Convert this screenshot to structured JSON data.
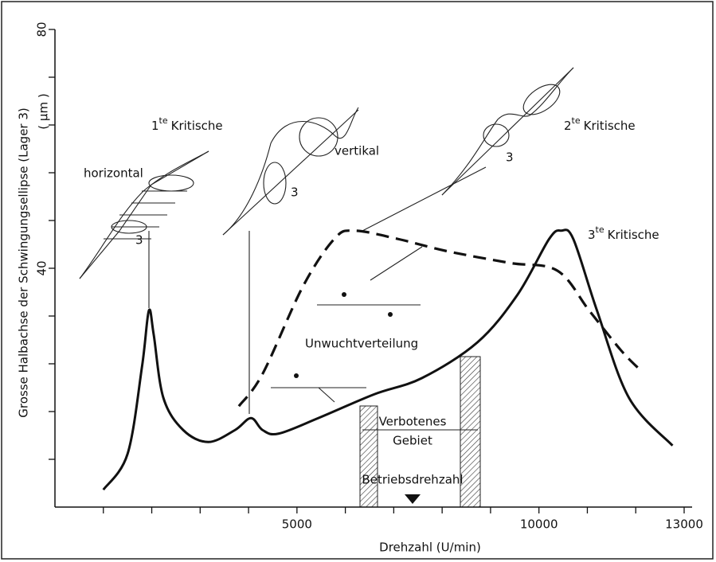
{
  "chart_data": {
    "type": "line",
    "ylabel": "Grosse Halbachse der Schwingungsellipse (Lager 3)",
    "yunit": "( μm )",
    "xlabel": "Drehzahl  (U/min)",
    "xlim": [
      0,
      13000
    ],
    "ylim": [
      0,
      80
    ],
    "xticks": [
      5000,
      10000,
      13000
    ],
    "xminorticks": [
      1000,
      2000,
      3000,
      4000,
      6000,
      7000,
      8000,
      9000,
      11000,
      12000
    ],
    "yticks": [
      40,
      80
    ],
    "yminorticks": [
      8,
      16,
      24,
      32,
      48,
      56,
      64,
      72
    ],
    "series": [
      {
        "color": "#111111",
        "dash": false,
        "x": [
          1000,
          1500,
          1800,
          1940,
          2040,
          2240,
          2650,
          3170,
          3720,
          4050,
          4290,
          4620,
          5440,
          6600,
          7580,
          8730,
          9560,
          10210,
          10460,
          10710,
          11200,
          11860,
          12760
        ],
        "values": [
          2.9,
          8.9,
          23.6,
          32.9,
          28.9,
          18.3,
          12.9,
          10.9,
          12.9,
          14.9,
          12.9,
          12.3,
          14.9,
          18.9,
          21.6,
          27.6,
          35.6,
          44.9,
          46.3,
          44.9,
          32.9,
          18.3,
          10.3
        ]
      },
      {
        "color": "#111111",
        "dash": true,
        "x": [
          3800,
          4290,
          5120,
          5770,
          6180,
          7090,
          8080,
          9390,
          10380,
          11040,
          11690,
          12100
        ],
        "values": [
          16.9,
          22.3,
          36.9,
          44.9,
          46.3,
          44.9,
          42.9,
          40.9,
          39.6,
          32.9,
          26.3,
          22.9
        ]
      }
    ],
    "annotations": {
      "k1": {
        "num": "1",
        "sup": "te",
        "text": "Kritische"
      },
      "k2": {
        "num": "2",
        "sup": "te",
        "text": "Kritische"
      },
      "k3": {
        "num": "3",
        "sup": "te",
        "text": "Kritische"
      },
      "horizontal": "horizontal",
      "vertikal": "vertikal",
      "bearing_a": "3",
      "bearing_b": "3",
      "bearing_c": "3",
      "unwucht": "Unwuchtverteilung",
      "verboten": "Verbotenes",
      "gebiet": "Gebiet",
      "betrieb": "Betriebsdrehzahl"
    }
  }
}
